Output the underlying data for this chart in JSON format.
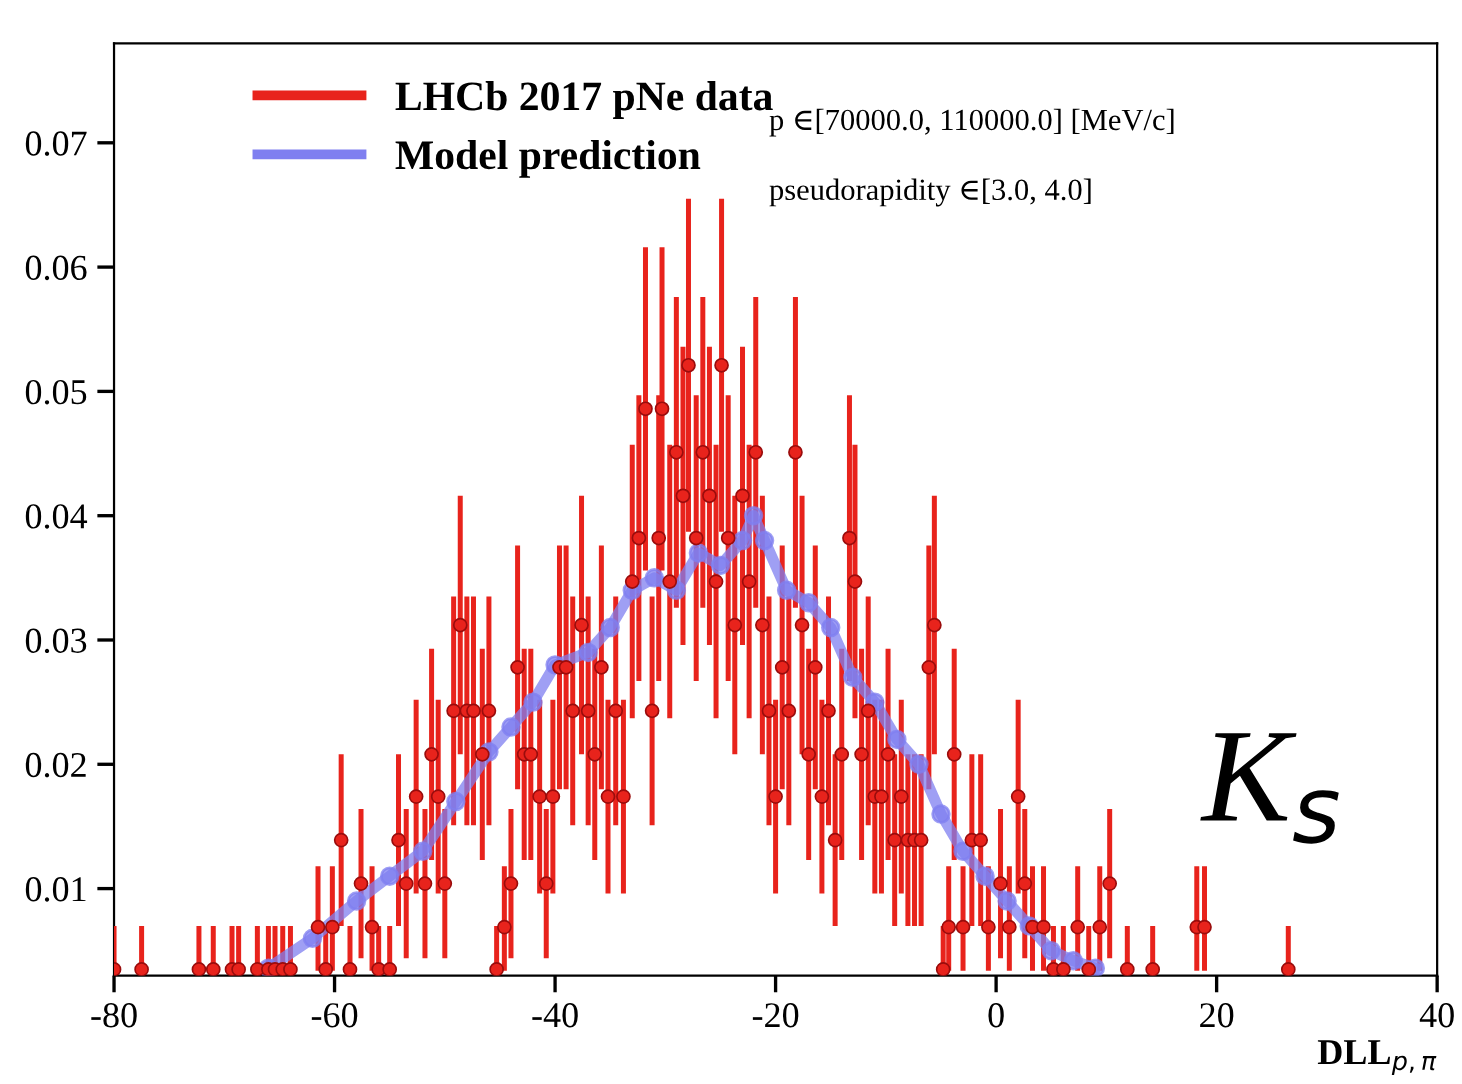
{
  "chart_data": {
    "type": "scatter",
    "xlabel": "DLL$_{p,π}$",
    "xlim": [
      -80,
      40
    ],
    "xticks": [
      -80,
      -60,
      -40,
      -20,
      0,
      20,
      40
    ],
    "ylim": [
      0.003,
      0.078
    ],
    "yticks": [
      0.01,
      0.02,
      0.03,
      0.04,
      0.05,
      0.06,
      0.07
    ],
    "grid": false,
    "legend": "top left",
    "annotations": [
      "p ∈[70000.0, 110000.0] [MeV/c]",
      "pseudorapidity ∈[3.0, 4.0]",
      "K$_{s}$"
    ],
    "series": [
      {
        "name": "LHCb 2017 pNe data",
        "color": "#e8231c",
        "marker": "circle",
        "x": [
          -80,
          -77.5,
          -72.3,
          -71,
          -69.3,
          -68.7,
          -67,
          -66,
          -65.4,
          -64.7,
          -64,
          -61.5,
          -60.8,
          -60.2,
          -59.4,
          -58.6,
          -57.6,
          -56.6,
          -56,
          -55,
          -54.2,
          -53.5,
          -52.6,
          -51.8,
          -51.2,
          -50.6,
          -50,
          -49.2,
          -48.6,
          -48,
          -47.4,
          -46.6,
          -46,
          -45.3,
          -44.6,
          -44,
          -43.4,
          -42.8,
          -42.2,
          -41.4,
          -40.8,
          -40.2,
          -39.6,
          -39,
          -38.4,
          -37.6,
          -37,
          -36.4,
          -35.8,
          -35.2,
          -34.5,
          -33.8,
          -33,
          -32.4,
          -31.8,
          -31.2,
          -30.6,
          -30.3,
          -29.6,
          -29,
          -28.4,
          -27.9,
          -27.2,
          -26.6,
          -26,
          -25.4,
          -24.9,
          -24.3,
          -23.7,
          -23,
          -22.4,
          -21.8,
          -21.2,
          -20.6,
          -20,
          -19.4,
          -18.8,
          -18.2,
          -17.6,
          -17,
          -16.4,
          -15.8,
          -15.2,
          -14.6,
          -14,
          -13.3,
          -12.8,
          -12.2,
          -11.6,
          -11,
          -10.4,
          -9.8,
          -9.2,
          -8.6,
          -8,
          -7.4,
          -6.8,
          -6.1,
          -5.6,
          -4.8,
          -4.3,
          -3.8,
          -3,
          -2.2,
          -1.4,
          -0.7,
          0.4,
          1.2,
          2,
          2.6,
          3.3,
          4.3,
          5.2,
          6.1,
          7.4,
          8.4,
          9.4,
          10.3,
          11.9,
          14.2,
          18.2,
          18.9,
          26.5
        ],
        "values": [
          0.0035,
          0.0035,
          0.0035,
          0.0035,
          0.0035,
          0.0035,
          0.0035,
          0.0035,
          0.0035,
          0.0035,
          0.0035,
          0.0069,
          0.0035,
          0.0069,
          0.0139,
          0.0035,
          0.0104,
          0.0069,
          0.0035,
          0.0035,
          0.0139,
          0.0104,
          0.0174,
          0.0104,
          0.0208,
          0.0174,
          0.0104,
          0.0243,
          0.0312,
          0.0243,
          0.0243,
          0.0208,
          0.0243,
          0.0035,
          0.0069,
          0.0104,
          0.0278,
          0.0208,
          0.0208,
          0.0174,
          0.0104,
          0.0174,
          0.0278,
          0.0278,
          0.0243,
          0.0312,
          0.0243,
          0.0208,
          0.0278,
          0.0174,
          0.0243,
          0.0174,
          0.0347,
          0.0382,
          0.0486,
          0.0243,
          0.0382,
          0.0486,
          0.0347,
          0.0451,
          0.0416,
          0.0521,
          0.0382,
          0.0451,
          0.0416,
          0.0347,
          0.0521,
          0.0382,
          0.0312,
          0.0416,
          0.0347,
          0.0451,
          0.0312,
          0.0243,
          0.0174,
          0.0278,
          0.0243,
          0.0451,
          0.0312,
          0.0208,
          0.0278,
          0.0174,
          0.0243,
          0.0139,
          0.0208,
          0.0382,
          0.0347,
          0.0208,
          0.0243,
          0.0174,
          0.0174,
          0.0208,
          0.0139,
          0.0174,
          0.0139,
          0.0139,
          0.0139,
          0.0278,
          0.0312,
          0.0035,
          0.0069,
          0.0208,
          0.0069,
          0.0139,
          0.0139,
          0.0069,
          0.0104,
          0.0069,
          0.0174,
          0.0104,
          0.0069,
          0.0069,
          0.0035,
          0.0035,
          0.0069,
          0.0035,
          0.0069,
          0.0104,
          0.0035,
          0.0035,
          0.0069,
          0.0069,
          0.0035
        ],
        "errors": [
          [
            0.0034,
            0.007
          ],
          [
            0.0034,
            0.007
          ],
          [
            0.0034,
            0.007
          ],
          [
            0.0034,
            0.007
          ],
          [
            0.0034,
            0.007
          ],
          [
            0.0034,
            0.007
          ],
          [
            0.0034,
            0.007
          ],
          [
            0.0034,
            0.007
          ],
          [
            0.0034,
            0.007
          ],
          [
            0.0034,
            0.007
          ],
          [
            0.0034,
            0.007
          ],
          [
            0.0034,
            0.0118
          ],
          [
            0.0034,
            0.007
          ],
          [
            0.0034,
            0.0118
          ],
          0.0069,
          [
            0.0034,
            0.007
          ],
          [
            0.0044,
            0.0164
          ],
          [
            0.0034,
            0.0118
          ],
          [
            0.0034,
            0.007
          ],
          [
            0.0034,
            0.007
          ],
          0.0069,
          [
            0.0044,
            0.0164
          ],
          0.0078,
          [
            0.0044,
            0.0164
          ],
          0.0085,
          0.0078,
          [
            0.0044,
            0.0164
          ],
          0.0092,
          0.0104,
          0.0092,
          0.0092,
          0.0085,
          0.0092,
          [
            0.0034,
            0.007
          ],
          [
            0.0034,
            0.0118
          ],
          [
            0.0044,
            0.0164
          ],
          0.0098,
          0.0085,
          0.0085,
          0.0078,
          [
            0.0044,
            0.0164
          ],
          0.0078,
          0.0098,
          0.0098,
          0.0092,
          0.0104,
          0.0092,
          0.0085,
          0.0098,
          0.0078,
          0.0092,
          0.0078,
          0.011,
          0.0115,
          0.013,
          0.0092,
          0.0115,
          0.013,
          0.011,
          0.0125,
          0.012,
          0.0134,
          0.0115,
          0.0125,
          0.012,
          0.011,
          0.0134,
          0.0115,
          0.0104,
          0.012,
          0.011,
          0.0125,
          0.0104,
          0.0092,
          0.0078,
          0.0098,
          0.0092,
          0.0125,
          0.0104,
          0.0085,
          0.0098,
          0.0078,
          0.0092,
          0.0069,
          0.0085,
          0.0115,
          0.011,
          0.0085,
          0.0092,
          0.0078,
          0.0078,
          0.0085,
          0.0069,
          0.0078,
          0.0069,
          0.0069,
          0.0069,
          0.0098,
          0.0104,
          [
            0.0034,
            0.007
          ],
          [
            0.0034,
            0.0118
          ],
          0.0085,
          [
            0.0034,
            0.0118
          ],
          0.0069,
          0.0069,
          [
            0.0034,
            0.0118
          ],
          [
            0.0044,
            0.0164
          ],
          [
            0.0034,
            0.0118
          ],
          0.0078,
          [
            0.0044,
            0.0164
          ],
          [
            0.0034,
            0.0118
          ],
          [
            0.0034,
            0.0118
          ],
          [
            0.0034,
            0.007
          ],
          [
            0.0034,
            0.007
          ],
          [
            0.0034,
            0.0118
          ],
          [
            0.0034,
            0.007
          ],
          [
            0.0034,
            0.0118
          ],
          [
            0.0044,
            0.0164
          ],
          [
            0.0034,
            0.007
          ],
          [
            0.0034,
            0.007
          ],
          [
            0.0034,
            0.0118
          ],
          [
            0.0034,
            0.0118
          ],
          [
            0.0034,
            0.007
          ]
        ]
      },
      {
        "name": "Model prediction",
        "type": "line",
        "color": "#7f7ff0",
        "marker": "circle",
        "x": [
          -66,
          -62,
          -58,
          -55,
          -52,
          -49,
          -46,
          -44,
          -42,
          -40,
          -37,
          -35,
          -33,
          -31,
          -29,
          -27,
          -25,
          -23,
          -22,
          -21,
          -19,
          -17,
          -15,
          -13,
          -11,
          -9,
          -7,
          -5,
          -3,
          -1,
          1,
          3,
          5,
          7,
          9
        ],
        "values": [
          0.0036,
          0.006,
          0.009,
          0.011,
          0.013,
          0.017,
          0.021,
          0.023,
          0.025,
          0.028,
          0.029,
          0.031,
          0.034,
          0.035,
          0.034,
          0.037,
          0.036,
          0.038,
          0.04,
          0.038,
          0.034,
          0.033,
          0.031,
          0.027,
          0.025,
          0.022,
          0.02,
          0.016,
          0.013,
          0.011,
          0.009,
          0.007,
          0.005,
          0.0042,
          0.0036
        ]
      }
    ]
  }
}
